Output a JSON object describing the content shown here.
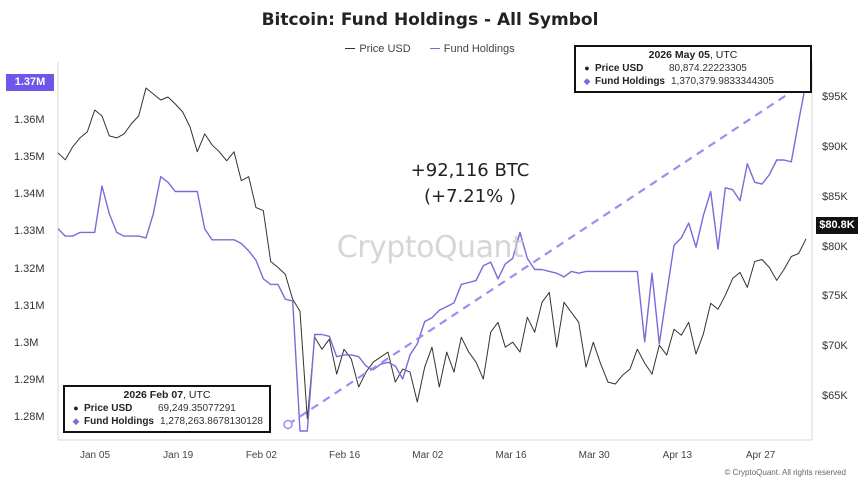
{
  "chart_data": {
    "type": "line",
    "title": "Bitcoin: Fund Holdings - All Symbol",
    "legend": [
      {
        "name": "Price USD",
        "color": "#333333"
      },
      {
        "name": "Fund Holdings",
        "color": "#7a6bd6"
      }
    ],
    "legend_position": "top-center",
    "x_ticks": [
      "Jan 05",
      "Jan 19",
      "Feb 02",
      "Feb 16",
      "Mar 02",
      "Mar 16",
      "Mar 30",
      "Apr 13",
      "Apr 27"
    ],
    "y_left": {
      "ticks": [
        "1.28M",
        "1.29M",
        "1.3M",
        "1.31M",
        "1.32M",
        "1.33M",
        "1.34M",
        "1.35M",
        "1.36M"
      ],
      "range": [
        1275000,
        1374000
      ],
      "current_label": "1.37M"
    },
    "y_right": {
      "ticks": [
        "$65K",
        "$70K",
        "$75K",
        "$80K",
        "$85K",
        "$90K",
        "$95K"
      ],
      "range": [
        61500,
        98000
      ],
      "current_label": "$80.8K"
    },
    "series": [
      {
        "name": "Price USD",
        "axis": "right",
        "color": "#333333",
        "values": [
          89500,
          88800,
          90100,
          91000,
          91600,
          93800,
          93200,
          91200,
          91000,
          91400,
          92400,
          93200,
          96000,
          95400,
          94800,
          95100,
          94400,
          93600,
          92100,
          89600,
          91400,
          90300,
          89600,
          88700,
          89600,
          86700,
          87100,
          84000,
          83700,
          78600,
          78000,
          77300,
          74800,
          73600,
          62800,
          71000,
          69800,
          70800,
          67300,
          69800,
          68800,
          66000,
          67500,
          68500,
          69000,
          69500,
          66500,
          67800,
          67500,
          64500,
          68000,
          70000,
          66000,
          69500,
          67500,
          71000,
          69500,
          68500,
          66800,
          71500,
          72500,
          70000,
          70500,
          69500,
          73000,
          71500,
          74500,
          75500,
          70000,
          74500,
          73500,
          72500,
          68000,
          70500,
          68300,
          66500,
          66300,
          67200,
          67800,
          69800,
          68400,
          67300,
          70200,
          69200,
          71800,
          71200,
          72500,
          69300,
          71300,
          74400,
          73800,
          75200,
          76900,
          77500,
          76000,
          78600,
          78800,
          78000,
          76700,
          77800,
          79100,
          79400,
          80874.22
        ]
      },
      {
        "name": "Fund Holdings",
        "axis": "left",
        "color": "#7a6bd6",
        "values": [
          1331000,
          1329000,
          1329000,
          1330000,
          1330000,
          1330000,
          1342500,
          1335000,
          1330000,
          1329000,
          1329000,
          1329000,
          1328500,
          1335000,
          1345000,
          1343500,
          1341000,
          1341000,
          1341000,
          1341000,
          1331000,
          1328000,
          1328000,
          1328000,
          1328000,
          1327000,
          1325000,
          1322500,
          1317500,
          1316000,
          1316000,
          1312000,
          1311500,
          1276500,
          1276500,
          1302500,
          1302500,
          1302000,
          1296500,
          1297000,
          1297000,
          1296500,
          1294000,
          1293000,
          1294500,
          1295000,
          1294000,
          1290500,
          1297000,
          1300000,
          1306000,
          1307000,
          1309000,
          1310000,
          1311000,
          1316000,
          1316500,
          1317000,
          1321000,
          1322000,
          1317500,
          1321500,
          1323000,
          1330000,
          1323000,
          1320000,
          1320000,
          1319500,
          1319000,
          1318000,
          1319500,
          1319000,
          1319500,
          1319500,
          1319500,
          1319500,
          1319500,
          1319500,
          1319500,
          1319500,
          1300500,
          1319000,
          1300000,
          1313500,
          1326500,
          1328500,
          1332500,
          1326000,
          1334500,
          1341000,
          1325500,
          1342000,
          1341500,
          1338500,
          1348500,
          1343500,
          1343000,
          1345500,
          1349500,
          1349500,
          1349000,
          1360000,
          1370379.98
        ]
      }
    ],
    "trend_arrow": {
      "from": {
        "x": "2026 Feb 07",
        "y": 1278263.87
      },
      "to": {
        "x": "2026 May 05",
        "y": 1370379.98
      }
    }
  },
  "annotation": {
    "line1": "+92,116 BTC",
    "line2": "(+7.21% )"
  },
  "watermark": "CryptoQuant",
  "tooltip_top": {
    "date": "2026 May 05",
    "utc": ", UTC",
    "price_label": "Price USD",
    "price_value": "80,874.22223305",
    "fund_label": "Fund Holdings",
    "fund_value": "1,370,379.9833344305"
  },
  "tooltip_bottom": {
    "date": "2026 Feb 07",
    "utc": ", UTC",
    "price_label": "Price USD",
    "price_value": "69,249.35077291",
    "fund_label": "Fund Holdings",
    "fund_value": "1,278,263.8678130128"
  },
  "copyright": "© CryptoQuant. All rights reserved"
}
